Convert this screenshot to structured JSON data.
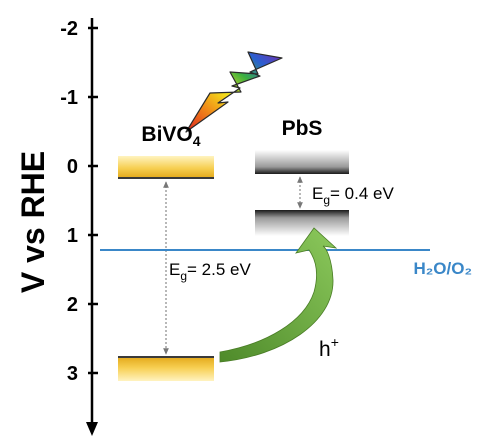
{
  "axis": {
    "label": "V vs RHE",
    "ticks": [
      "-2",
      "-1",
      "0",
      "1",
      "2",
      "3"
    ],
    "direction": "potential increases downward"
  },
  "materials": {
    "bivo4": {
      "name_main": "BiVO",
      "name_sub": "4",
      "band_fill": "#f5c542",
      "band_edge": "#c89a10",
      "bandgap": {
        "prefix": "E",
        "sub": "g",
        "value": "= 2.5 eV"
      }
    },
    "pbs": {
      "name": "PbS",
      "band_fill": "#555555",
      "band_edge": "#111111",
      "bandgap": {
        "prefix": "E",
        "sub": "g",
        "value": "= 0.4 eV"
      }
    }
  },
  "redox": {
    "text": "H₂O/O₂",
    "color": "#3a87c8"
  },
  "hole_transfer": {
    "label": "h",
    "superscript": "+",
    "arrow_color": "#6aa83a"
  },
  "light_icon": "lightning-bolt-icon"
}
